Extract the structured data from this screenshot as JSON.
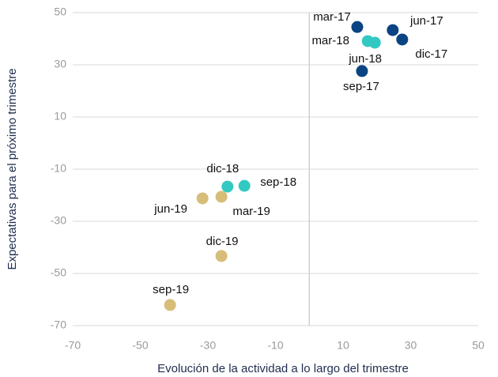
{
  "chart_data": {
    "type": "scatter",
    "xlabel": "Evolución de la actividad a lo largo del trimestre",
    "ylabel": "Expectativas para el próximo trimestre",
    "xlim": [
      -70,
      50
    ],
    "xticks": [
      -70,
      -50,
      -30,
      -10,
      10,
      30,
      50
    ],
    "ylim": [
      -70,
      50
    ],
    "yticks": [
      -70,
      -50,
      -30,
      -10,
      10,
      30,
      50
    ],
    "grid": true,
    "series": [
      {
        "color": "#0b4483",
        "x": [
          14.2,
          24.7,
          27.5,
          15.6
        ],
        "values": [
          44.5,
          43.3,
          39.7,
          27.6
        ],
        "labels": [
          "mar-17",
          "jun-17",
          "dic-17",
          "sep-17"
        ]
      },
      {
        "color": "#33c9c3",
        "x": [
          17.3,
          19.4,
          -24.2,
          -19.2
        ],
        "values": [
          39.1,
          38.5,
          -16.7,
          -16.4
        ],
        "labels": [
          "mar-18",
          "jun-18",
          "dic-18",
          "sep-18"
        ]
      },
      {
        "color": "#d7bd78",
        "x": [
          -31.6,
          -26,
          -26,
          -41.2
        ],
        "values": [
          -21.2,
          -20.6,
          -43.3,
          -62.1
        ],
        "labels": [
          "jun-19",
          "mar-19",
          "dic-19",
          "sep-19"
        ]
      }
    ]
  }
}
